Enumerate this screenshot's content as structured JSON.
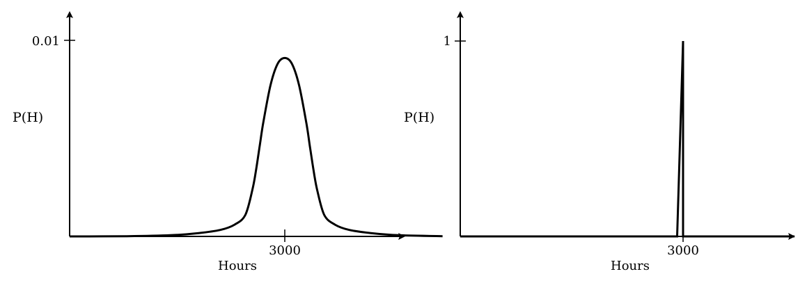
{
  "chart_data": [
    {
      "type": "line",
      "ylabel": "P(H)",
      "xlabel": "Hours",
      "x_ticks": [
        {
          "value": 3000,
          "label": "3000"
        }
      ],
      "y_ticks": [
        {
          "value": 0.01,
          "label": "0.01"
        }
      ],
      "xlim": [
        0,
        5600
      ],
      "ylim": [
        0,
        0.0111
      ],
      "series": [
        {
          "x": [
            0,
            800,
            1400,
            1800,
            2100,
            2300,
            2450,
            2550,
            2600,
            2650,
            2700,
            2800,
            2900,
            3000,
            3100,
            3200,
            3300,
            3350,
            3400,
            3450,
            3550,
            3700,
            3900,
            4200,
            4600,
            5200
          ],
          "y": [
            0,
            1e-05,
            6e-05,
            0.00017,
            0.00033,
            0.0006,
            0.0011,
            0.0024,
            0.0034,
            0.0046,
            0.0058,
            0.0077,
            0.0088,
            0.0091,
            0.0088,
            0.0077,
            0.0058,
            0.0046,
            0.0034,
            0.0024,
            0.0011,
            0.0006,
            0.00033,
            0.00017,
            6e-05,
            1e-05
          ]
        }
      ]
    },
    {
      "type": "line",
      "ylabel": "P(H)",
      "xlabel": "Hours",
      "x_ticks": [
        {
          "value": 3000,
          "label": "3000"
        }
      ],
      "y_ticks": [
        {
          "value": 1,
          "label": "1"
        }
      ],
      "xlim": [
        0,
        4500
      ],
      "ylim": [
        0,
        1.1
      ],
      "series": [
        {
          "x": [
            0,
            2920,
            3000,
            3000,
            4500
          ],
          "y": [
            0,
            0,
            1,
            0,
            0
          ]
        }
      ]
    }
  ]
}
